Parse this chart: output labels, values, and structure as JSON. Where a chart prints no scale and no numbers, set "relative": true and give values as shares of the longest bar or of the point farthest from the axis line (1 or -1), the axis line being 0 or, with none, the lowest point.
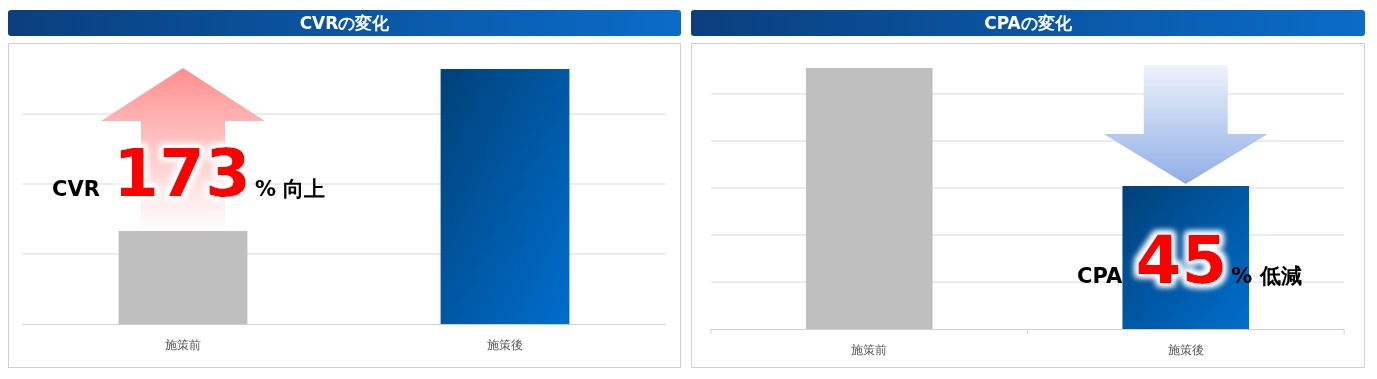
{
  "chart_data": [
    {
      "type": "bar",
      "title": "CVRの変化",
      "categories": [
        "施策前",
        "施策後"
      ],
      "values": [
        0.365,
        1
      ],
      "colors": [
        "#bfbfbf",
        "#005aa8"
      ],
      "relative": true,
      "grid": true,
      "annotations": [
        "CVR 173% 向上"
      ]
    },
    {
      "type": "bar",
      "title": "CPAの変化",
      "categories": [
        "施策前",
        "施策後"
      ],
      "values": [
        1,
        0.548
      ],
      "colors": [
        "#bfbfbf",
        "#005aa8"
      ],
      "relative": true,
      "grid": true,
      "annotations": [
        "CPA 45% 低減"
      ]
    }
  ]
}
